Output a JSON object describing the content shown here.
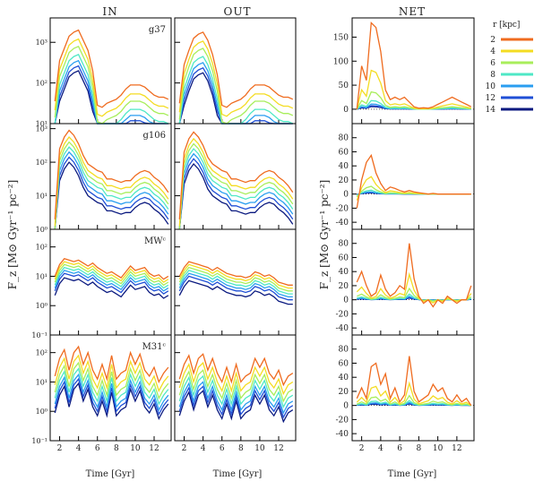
{
  "figure": {
    "column_titles": [
      "IN",
      "OUT",
      "NET"
    ],
    "left_ylabel": "F_z  [M⊙ Gyr⁻¹ pc⁻²]",
    "right_ylabel": "F_z  [M⊙ Gyr⁻¹ pc⁻²]",
    "xlabel": "Time [Gyr]",
    "legend_title": "r [kpc]",
    "panel_labels": [
      "g37",
      "g106",
      "MWᶜ",
      "M31ᶜ"
    ]
  },
  "chart_data": {
    "type": "line",
    "x": [
      1.5,
      2.0,
      2.5,
      3.0,
      3.5,
      4.0,
      4.5,
      5.0,
      5.5,
      6.0,
      6.5,
      7.0,
      7.5,
      8.0,
      8.5,
      9.0,
      9.5,
      10.0,
      10.5,
      11.0,
      11.5,
      12.0,
      12.5,
      13.0,
      13.5
    ],
    "x_ticks": [
      2,
      4,
      6,
      8,
      10,
      12
    ],
    "xlim": [
      1.0,
      13.8
    ],
    "legend": {
      "title": "r [kpc]",
      "placement": "top-right",
      "entries": [
        {
          "label": "2",
          "color": "#ef6b1f"
        },
        {
          "label": "4",
          "color": "#f4dc22"
        },
        {
          "label": "6",
          "color": "#a8ee5b"
        },
        {
          "label": "8",
          "color": "#4fe8c6"
        },
        {
          "label": "10",
          "color": "#2a9ef0"
        },
        {
          "label": "12",
          "color": "#1f4fd6"
        },
        {
          "label": "14",
          "color": "#0b1a80"
        }
      ]
    },
    "rows": [
      {
        "galaxy": "g37",
        "log_ylim": [
          1,
          3.6
        ],
        "log_ticks": [
          {
            "v": 1,
            "t": "10¹"
          },
          {
            "v": 2,
            "t": "10²"
          },
          {
            "v": 3,
            "t": "10³"
          }
        ],
        "in_base": [
          1.55,
          2.55,
          2.85,
          3.15,
          3.25,
          3.3,
          3.05,
          2.8,
          2.3,
          1.45,
          1.4,
          1.5,
          1.55,
          1.6,
          1.7,
          1.85,
          1.95,
          1.95,
          1.95,
          1.9,
          1.8,
          1.7,
          1.65,
          1.65,
          1.6
        ],
        "out_base": [
          1.5,
          2.45,
          2.8,
          3.1,
          3.2,
          3.25,
          3.05,
          2.7,
          2.2,
          1.45,
          1.4,
          1.5,
          1.55,
          1.6,
          1.7,
          1.85,
          1.95,
          1.95,
          1.95,
          1.9,
          1.8,
          1.7,
          1.65,
          1.65,
          1.6
        ],
        "in_dec": [
          0,
          0.22,
          0.4,
          0.6,
          0.75,
          0.88,
          1.0
        ],
        "net_ylim": [
          -30,
          190
        ],
        "net_ticks": [
          0,
          50,
          100,
          150
        ]
      },
      {
        "galaxy": "g106",
        "log_ylim": [
          0,
          3.15
        ],
        "log_ticks": [
          {
            "v": 0,
            "t": "10⁰"
          },
          {
            "v": 1,
            "t": "10¹"
          },
          {
            "v": 2,
            "t": "10²"
          },
          {
            "v": 3,
            "t": "10³"
          }
        ],
        "in_base": [
          0.3,
          2.4,
          2.75,
          2.95,
          2.8,
          2.55,
          2.2,
          1.95,
          1.85,
          1.75,
          1.7,
          1.5,
          1.5,
          1.45,
          1.4,
          1.45,
          1.45,
          1.6,
          1.7,
          1.75,
          1.7,
          1.55,
          1.45,
          1.3,
          1.1
        ],
        "out_base": [
          0.3,
          2.3,
          2.7,
          2.9,
          2.75,
          2.5,
          2.15,
          1.95,
          1.85,
          1.75,
          1.7,
          1.5,
          1.5,
          1.45,
          1.4,
          1.45,
          1.45,
          1.6,
          1.7,
          1.75,
          1.7,
          1.55,
          1.45,
          1.3,
          1.1
        ],
        "in_dec": [
          0,
          0.2,
          0.35,
          0.5,
          0.65,
          0.8,
          0.95
        ],
        "net_ylim": [
          -50,
          100
        ],
        "net_ticks": [
          -40,
          -20,
          0,
          20,
          40,
          60,
          80
        ]
      },
      {
        "galaxy": "MWᶜ",
        "log_ylim": [
          -1,
          2.6
        ],
        "log_ticks": [
          {
            "v": -1,
            "t": "10⁻¹"
          },
          {
            "v": 0,
            "t": "10⁰"
          },
          {
            "v": 1,
            "t": "10¹"
          },
          {
            "v": 2,
            "t": "10²"
          }
        ],
        "in_base": [
          1.0,
          1.4,
          1.6,
          1.55,
          1.5,
          1.55,
          1.45,
          1.35,
          1.45,
          1.3,
          1.2,
          1.1,
          1.15,
          1.05,
          0.95,
          1.15,
          1.35,
          1.2,
          1.25,
          1.3,
          1.1,
          1.0,
          1.05,
          0.9,
          1.0
        ],
        "out_base": [
          1.0,
          1.3,
          1.5,
          1.45,
          1.4,
          1.35,
          1.3,
          1.2,
          1.3,
          1.2,
          1.1,
          1.05,
          1.0,
          1.0,
          0.95,
          1.0,
          1.15,
          1.1,
          1.0,
          1.05,
          0.95,
          0.8,
          0.75,
          0.7,
          0.7
        ],
        "in_dec": [
          0,
          0.1,
          0.2,
          0.3,
          0.4,
          0.5,
          0.65
        ],
        "net_ylim": [
          -50,
          100
        ],
        "net_ticks": [
          -40,
          -20,
          0,
          20,
          40,
          60,
          80
        ]
      },
      {
        "galaxy": "M31ᶜ",
        "log_ylim": [
          -1,
          2.6
        ],
        "log_ticks": [
          {
            "v": -1,
            "t": "10⁻¹"
          },
          {
            "v": 0,
            "t": "10⁰"
          },
          {
            "v": 1,
            "t": "10¹"
          },
          {
            "v": 2,
            "t": "10²"
          }
        ],
        "in_base": [
          1.2,
          1.8,
          2.1,
          1.4,
          2.0,
          2.2,
          1.6,
          2.0,
          1.4,
          1.1,
          1.6,
          1.1,
          1.9,
          1.1,
          1.3,
          1.4,
          2.0,
          1.6,
          1.95,
          1.4,
          1.2,
          1.5,
          1.0,
          1.3,
          1.5
        ],
        "out_base": [
          1.1,
          1.6,
          1.9,
          1.3,
          1.8,
          1.95,
          1.4,
          1.8,
          1.3,
          1.0,
          1.5,
          1.0,
          1.6,
          1.0,
          1.2,
          1.3,
          1.8,
          1.5,
          1.8,
          1.3,
          1.1,
          1.4,
          0.9,
          1.2,
          1.3
        ],
        "in_dec": [
          0,
          0.3,
          0.55,
          0.75,
          0.95,
          1.1,
          1.25
        ],
        "net_ylim": [
          -50,
          100
        ],
        "net_ticks": [
          -40,
          -20,
          0,
          20,
          40,
          60,
          80
        ]
      }
    ],
    "net_peaks": [
      [
        [
          0,
          0
        ],
        [
          1,
          90
        ],
        [
          2,
          60
        ],
        [
          3,
          180
        ],
        [
          4,
          170
        ],
        [
          5,
          120
        ],
        [
          6,
          40
        ],
        [
          7,
          20
        ],
        [
          8,
          25
        ],
        [
          9,
          20
        ],
        [
          10,
          25
        ],
        [
          11,
          15
        ],
        [
          12,
          5
        ],
        [
          13,
          2
        ],
        [
          14,
          3
        ],
        [
          15,
          2
        ],
        [
          16,
          5
        ],
        [
          17,
          10
        ],
        [
          18,
          15
        ],
        [
          19,
          20
        ],
        [
          20,
          25
        ],
        [
          21,
          20
        ],
        [
          22,
          15
        ],
        [
          23,
          10
        ],
        [
          24,
          5
        ]
      ],
      [
        [
          0,
          -20
        ],
        [
          1,
          20
        ],
        [
          2,
          45
        ],
        [
          3,
          55
        ],
        [
          4,
          30
        ],
        [
          5,
          15
        ],
        [
          6,
          5
        ],
        [
          7,
          10
        ],
        [
          8,
          8
        ],
        [
          9,
          5
        ],
        [
          10,
          3
        ],
        [
          11,
          5
        ],
        [
          12,
          3
        ],
        [
          13,
          2
        ],
        [
          14,
          1
        ],
        [
          15,
          0
        ],
        [
          16,
          1
        ],
        [
          17,
          0
        ],
        [
          18,
          0
        ],
        [
          19,
          0
        ],
        [
          20,
          0
        ],
        [
          21,
          0
        ],
        [
          22,
          0
        ],
        [
          23,
          0
        ],
        [
          24,
          0
        ]
      ],
      [
        [
          0,
          25
        ],
        [
          1,
          40
        ],
        [
          2,
          20
        ],
        [
          3,
          5
        ],
        [
          4,
          10
        ],
        [
          5,
          35
        ],
        [
          6,
          15
        ],
        [
          7,
          5
        ],
        [
          8,
          10
        ],
        [
          9,
          20
        ],
        [
          10,
          15
        ],
        [
          11,
          80
        ],
        [
          12,
          30
        ],
        [
          13,
          5
        ],
        [
          14,
          -5
        ],
        [
          15,
          0
        ],
        [
          16,
          -10
        ],
        [
          17,
          0
        ],
        [
          18,
          -5
        ],
        [
          19,
          5
        ],
        [
          20,
          0
        ],
        [
          21,
          -5
        ],
        [
          22,
          0
        ],
        [
          23,
          0
        ],
        [
          24,
          20
        ]
      ],
      [
        [
          0,
          10
        ],
        [
          1,
          25
        ],
        [
          2,
          10
        ],
        [
          3,
          55
        ],
        [
          4,
          60
        ],
        [
          5,
          30
        ],
        [
          6,
          45
        ],
        [
          7,
          10
        ],
        [
          8,
          25
        ],
        [
          9,
          5
        ],
        [
          10,
          15
        ],
        [
          11,
          70
        ],
        [
          12,
          20
        ],
        [
          13,
          5
        ],
        [
          14,
          10
        ],
        [
          15,
          15
        ],
        [
          16,
          30
        ],
        [
          17,
          20
        ],
        [
          18,
          25
        ],
        [
          19,
          10
        ],
        [
          20,
          5
        ],
        [
          21,
          15
        ],
        [
          22,
          5
        ],
        [
          23,
          10
        ],
        [
          24,
          0
        ]
      ]
    ]
  }
}
